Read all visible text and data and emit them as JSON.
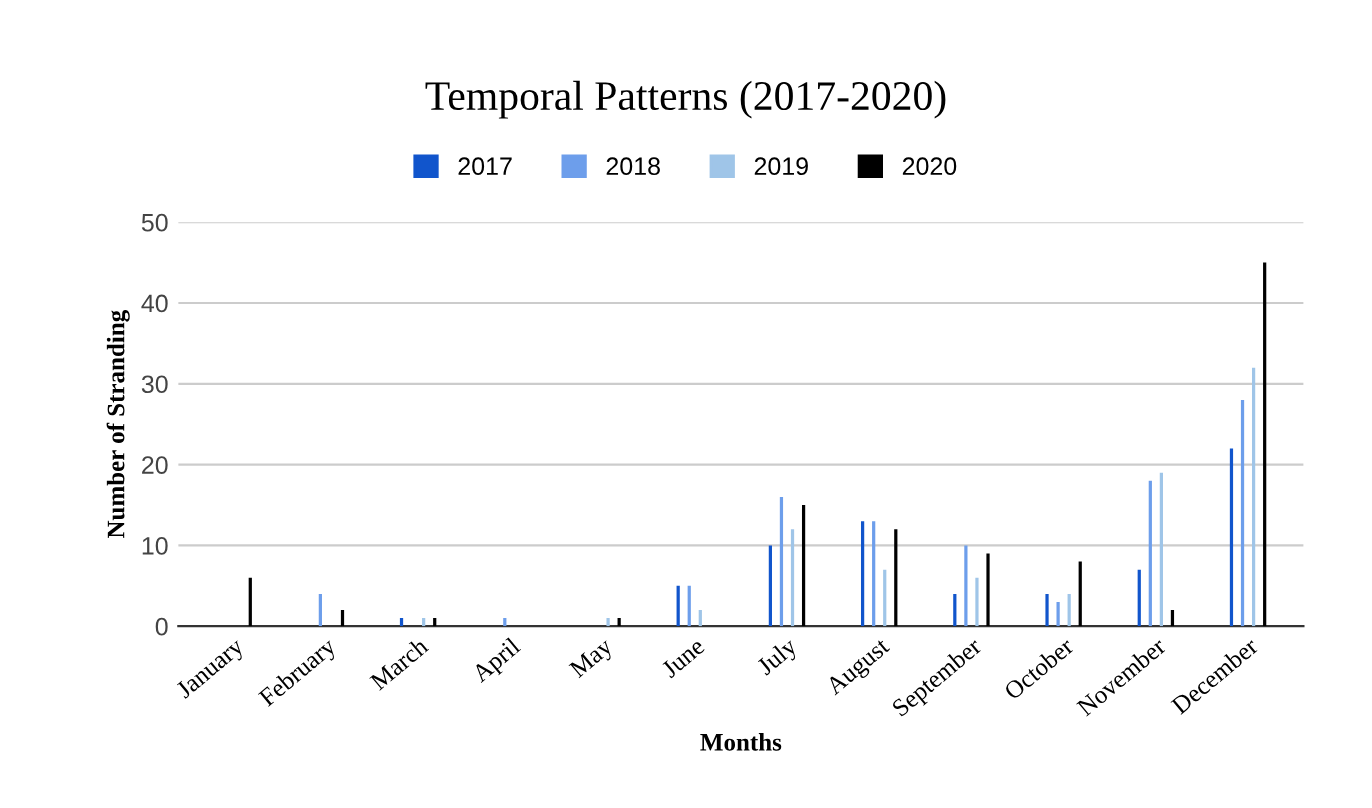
{
  "chart_data": {
    "type": "bar",
    "title": "Temporal Patterns (2017-2020)",
    "xlabel": "Months",
    "ylabel": "Number of Stranding",
    "categories": [
      "January",
      "February",
      "March",
      "April",
      "May",
      "June",
      "July",
      "August",
      "September",
      "October",
      "November",
      "December"
    ],
    "series": [
      {
        "name": "2017",
        "color": "#1155cc",
        "values": [
          0,
          0,
          1,
          0,
          0,
          5,
          10,
          13,
          4,
          4,
          7,
          22
        ]
      },
      {
        "name": "2018",
        "color": "#6d9eeb",
        "values": [
          0,
          4,
          0,
          1,
          0,
          5,
          16,
          13,
          10,
          3,
          18,
          28
        ]
      },
      {
        "name": "2019",
        "color": "#9fc5e8",
        "values": [
          0,
          0,
          1,
          0,
          1,
          2,
          12,
          7,
          6,
          4,
          19,
          32
        ]
      },
      {
        "name": "2020",
        "color": "#000000",
        "values": [
          6,
          2,
          1,
          0,
          1,
          0,
          15,
          12,
          9,
          8,
          2,
          45
        ]
      }
    ],
    "ylim": [
      0,
      50
    ],
    "yticks": [
      0,
      10,
      20,
      30,
      40,
      50
    ],
    "grid": "y",
    "legend": "top"
  }
}
